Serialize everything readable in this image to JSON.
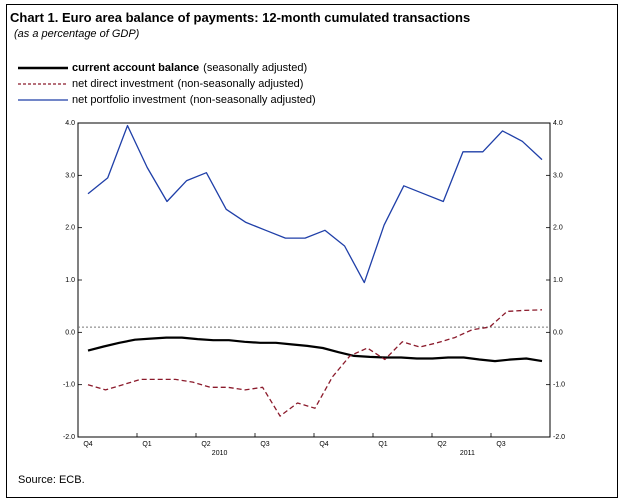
{
  "title": "Chart 1. Euro area balance of payments: 12-month cumulated transactions",
  "subtitle": "(as a percentage of GDP)",
  "legend": [
    {
      "label": "current account balance",
      "note": "(seasonally adjusted)",
      "color": "#000000",
      "style": "solid-thick"
    },
    {
      "label": "net direct investment",
      "note": "(non-seasonally adjusted)",
      "color": "#8b1a2b",
      "style": "dashed"
    },
    {
      "label": "net portfolio investment",
      "note": "(non-seasonally adjusted)",
      "color": "#1f3fa8",
      "style": "solid"
    }
  ],
  "source": "Source: ECB.",
  "chart_data": {
    "type": "line",
    "title": "Chart 1. Euro area balance of payments: 12-month cumulated transactions",
    "subtitle": "(as a percentage of GDP)",
    "ylim": [
      -2.0,
      4.0
    ],
    "y_ticks_left": [
      "4.0",
      "3.0",
      "2.0",
      "1.0",
      "0.0",
      "-1.0",
      "-2.0"
    ],
    "y_ticks_right": [
      "4.0",
      "3.0",
      "2.0",
      "1.0",
      "0.0",
      "-1.0",
      "-2.0"
    ],
    "x_period_labels": [
      "Q4",
      "Q1",
      "Q2",
      "Q3",
      "Q4",
      "Q1",
      "Q2",
      "Q3"
    ],
    "x_year_labels": [
      "2010",
      "2011"
    ],
    "reference_line": {
      "y": 0.1,
      "style": "dotted"
    },
    "legend_position": "top-left",
    "series": [
      {
        "name": "current account balance",
        "values": [
          -0.35,
          -0.27,
          -0.2,
          -0.14,
          -0.12,
          -0.1,
          -0.1,
          -0.13,
          -0.15,
          -0.15,
          -0.18,
          -0.2,
          -0.2,
          -0.23,
          -0.26,
          -0.3,
          -0.38,
          -0.45,
          -0.47,
          -0.48,
          -0.48,
          -0.5,
          -0.5,
          -0.48,
          -0.48,
          -0.52,
          -0.55,
          -0.52,
          -0.5,
          -0.55
        ]
      },
      {
        "name": "net direct investment",
        "values": [
          -1.0,
          -1.1,
          -1.0,
          -0.9,
          -0.9,
          -0.9,
          -0.95,
          -1.05,
          -1.05,
          -1.1,
          -1.05,
          -1.6,
          -1.35,
          -1.45,
          -0.85,
          -0.45,
          -0.3,
          -0.52,
          -0.18,
          -0.28,
          -0.2,
          -0.1,
          0.05,
          0.1,
          0.4,
          0.42,
          0.43
        ]
      },
      {
        "name": "net portfolio investment",
        "values": [
          2.65,
          2.95,
          3.95,
          3.15,
          2.5,
          2.9,
          3.05,
          2.35,
          2.1,
          1.95,
          1.8,
          1.8,
          1.95,
          1.65,
          0.95,
          2.05,
          2.8,
          2.65,
          2.5,
          3.45,
          3.45,
          3.85,
          3.65,
          3.3
        ]
      }
    ]
  }
}
